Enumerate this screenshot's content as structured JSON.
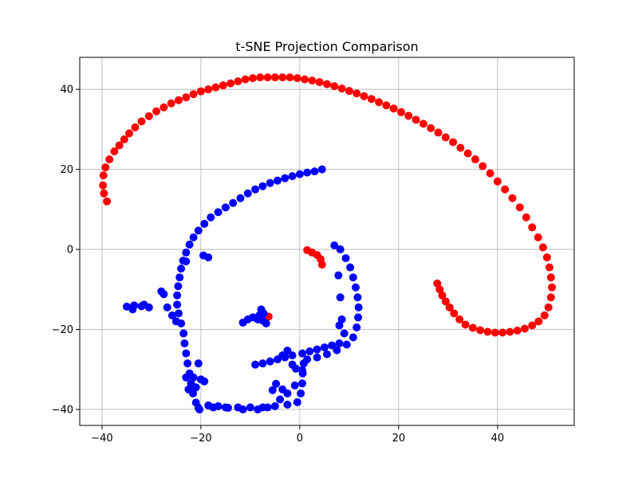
{
  "chart_data": {
    "type": "scatter",
    "title": "t-SNE Projection Comparison",
    "xlabel": "",
    "ylabel": "",
    "xlim": [
      -44.5,
      55.5
    ],
    "ylim": [
      -44,
      48
    ],
    "xticks": [
      -40,
      -20,
      0,
      20,
      40
    ],
    "yticks": [
      -40,
      -20,
      0,
      20,
      40
    ],
    "grid": true,
    "legend": "none",
    "series": [
      {
        "color": "#ff0000",
        "points": [
          [
            -39,
            12
          ],
          [
            -39.6,
            14
          ],
          [
            -39.8,
            16
          ],
          [
            -39.7,
            18.5
          ],
          [
            -39.3,
            20.5
          ],
          [
            -38.5,
            22.5
          ],
          [
            -37.5,
            24.5
          ],
          [
            -36.5,
            26
          ],
          [
            -35.5,
            27.5
          ],
          [
            -34.5,
            29
          ],
          [
            -33.3,
            30.5
          ],
          [
            -32,
            32
          ],
          [
            -30.5,
            33.3
          ],
          [
            -29,
            34.5
          ],
          [
            -27.5,
            35.5
          ],
          [
            -26,
            36.5
          ],
          [
            -24.5,
            37.3
          ],
          [
            -23,
            38
          ],
          [
            -21.5,
            38.8
          ],
          [
            -20,
            39.5
          ],
          [
            -18.5,
            40
          ],
          [
            -17,
            40.5
          ],
          [
            -15.5,
            41
          ],
          [
            -14,
            41.5
          ],
          [
            -12.5,
            42
          ],
          [
            -11,
            42.5
          ],
          [
            -9.5,
            42.8
          ],
          [
            -8,
            43
          ],
          [
            -6.5,
            43
          ],
          [
            -5,
            43
          ],
          [
            -3.5,
            43
          ],
          [
            -2,
            43
          ],
          [
            -0.5,
            42.8
          ],
          [
            1,
            42.5
          ],
          [
            2.5,
            42.2
          ],
          [
            4,
            41.8
          ],
          [
            5.5,
            41.3
          ],
          [
            7,
            40.8
          ],
          [
            8.5,
            40.2
          ],
          [
            10,
            39.6
          ],
          [
            11.5,
            39
          ],
          [
            13,
            38.3
          ],
          [
            14.5,
            37.6
          ],
          [
            16,
            36.8
          ],
          [
            17.5,
            36
          ],
          [
            19,
            35.2
          ],
          [
            20.5,
            34.3
          ],
          [
            22,
            33.4
          ],
          [
            23.5,
            32.4
          ],
          [
            25,
            31.4
          ],
          [
            26.5,
            30.3
          ],
          [
            28,
            29.2
          ],
          [
            29.5,
            28
          ],
          [
            31,
            26.8
          ],
          [
            32.5,
            25.4
          ],
          [
            34,
            24
          ],
          [
            35.5,
            22.5
          ],
          [
            37,
            20.8
          ],
          [
            38.5,
            19
          ],
          [
            40,
            17
          ],
          [
            41.5,
            15
          ],
          [
            43,
            12.8
          ],
          [
            44.5,
            10.5
          ],
          [
            45.8,
            8
          ],
          [
            47,
            5.5
          ],
          [
            48.2,
            3
          ],
          [
            49.2,
            0.5
          ],
          [
            50,
            -2
          ],
          [
            50.5,
            -4.5
          ],
          [
            50.8,
            -7
          ],
          [
            51,
            -9.5
          ],
          [
            50.8,
            -12
          ],
          [
            50.3,
            -14.5
          ],
          [
            49.5,
            -16.5
          ],
          [
            48.3,
            -18
          ],
          [
            47,
            -19
          ],
          [
            45.5,
            -19.8
          ],
          [
            44,
            -20.3
          ],
          [
            42.5,
            -20.6
          ],
          [
            41,
            -20.8
          ],
          [
            39.5,
            -20.8
          ],
          [
            38,
            -20.6
          ],
          [
            36.5,
            -20.2
          ],
          [
            35,
            -19.6
          ],
          [
            33.5,
            -18.8
          ],
          [
            32.3,
            -17.5
          ],
          [
            31.2,
            -16
          ],
          [
            30.3,
            -14.5
          ],
          [
            29.5,
            -13
          ],
          [
            28.8,
            -11.5
          ],
          [
            28.3,
            -10
          ],
          [
            27.8,
            -8.5
          ],
          [
            1.5,
            -0.2
          ],
          [
            2.5,
            -0.8
          ],
          [
            3.5,
            -1.4
          ],
          [
            4.2,
            -2.4
          ],
          [
            4.5,
            -3.8
          ],
          [
            -6.3,
            -16.8
          ]
        ]
      },
      {
        "color": "#0000ff",
        "points": [
          [
            4.5,
            20
          ],
          [
            3,
            19.5
          ],
          [
            1.5,
            19.2
          ],
          [
            0,
            18.8
          ],
          [
            -1.5,
            18.3
          ],
          [
            -3,
            17.8
          ],
          [
            -4.5,
            17.2
          ],
          [
            -6,
            16.6
          ],
          [
            -7.5,
            15.8
          ],
          [
            -9,
            15
          ],
          [
            -10.5,
            14
          ],
          [
            -12,
            12.8
          ],
          [
            -13.5,
            11.6
          ],
          [
            -15,
            10.5
          ],
          [
            -16.5,
            9.3
          ],
          [
            -18,
            8
          ],
          [
            -19.3,
            6.4
          ],
          [
            -20.5,
            4.7
          ],
          [
            -21.5,
            3
          ],
          [
            -22.3,
            1.2
          ],
          [
            -23,
            -0.8
          ],
          [
            -23.6,
            -2.8
          ],
          [
            -24,
            -4.8
          ],
          [
            -24.3,
            -7
          ],
          [
            -24.6,
            -9.2
          ],
          [
            -24.8,
            -11.5
          ],
          [
            -24.8,
            -13.8
          ],
          [
            -24.5,
            -16
          ],
          [
            -24,
            -18.5
          ],
          [
            -23.5,
            -21
          ],
          [
            -23.3,
            -23.5
          ],
          [
            -23,
            -26
          ],
          [
            -22.7,
            -28.5
          ],
          [
            -22.3,
            -31
          ],
          [
            -22,
            -33.5
          ],
          [
            -21.6,
            -36
          ],
          [
            -21,
            -38.3
          ],
          [
            -20.5,
            -39.6
          ],
          [
            -17.5,
            -39.5
          ],
          [
            -15,
            -39.5
          ],
          [
            -12.5,
            -39.5
          ],
          [
            -10,
            -39.5
          ],
          [
            -7.5,
            -39.5
          ],
          [
            -5,
            -39.2
          ],
          [
            -2.5,
            -38.8
          ],
          [
            -0.5,
            -38.2
          ],
          [
            0.2,
            -36
          ],
          [
            0.5,
            -33.5
          ],
          [
            0.6,
            -31
          ],
          [
            0.8,
            -28.5
          ],
          [
            1.5,
            -27.5
          ],
          [
            3.5,
            -27
          ],
          [
            5.5,
            -26.2
          ],
          [
            7.5,
            -25.2
          ],
          [
            9.5,
            -23.8
          ],
          [
            10.8,
            -22
          ],
          [
            11.5,
            -19.5
          ],
          [
            11.8,
            -17
          ],
          [
            11.9,
            -14.5
          ],
          [
            11.7,
            -12
          ],
          [
            11.3,
            -9.5
          ],
          [
            10.8,
            -7
          ],
          [
            10.2,
            -4.5
          ],
          [
            9.3,
            -2.2
          ],
          [
            8.2,
            0
          ],
          [
            7,
            1
          ],
          [
            7.8,
            -6.5
          ],
          [
            8.2,
            -12
          ],
          [
            8.5,
            -17.5
          ],
          [
            8,
            -19
          ],
          [
            9,
            -21
          ],
          [
            -30.5,
            -14.5
          ],
          [
            -32,
            -14.2
          ],
          [
            -33.5,
            -14
          ],
          [
            -35,
            -14.3
          ],
          [
            -33.8,
            -15
          ],
          [
            -31.5,
            -13.8
          ],
          [
            -28,
            -10.5
          ],
          [
            -27.5,
            -11.2
          ],
          [
            -26.8,
            -14.5
          ],
          [
            -25.8,
            -16.5
          ],
          [
            -25,
            -18
          ],
          [
            -23,
            -3
          ],
          [
            -19.5,
            -1.5
          ],
          [
            -18.5,
            -2
          ],
          [
            -9,
            -28.8
          ],
          [
            -7.5,
            -28.5
          ],
          [
            -6,
            -28
          ],
          [
            -4.5,
            -27.5
          ],
          [
            -3,
            -27
          ],
          [
            -1.5,
            -26.5
          ],
          [
            0.5,
            -26
          ],
          [
            2,
            -25.5
          ],
          [
            3.5,
            -25
          ],
          [
            5,
            -24.5
          ],
          [
            6.5,
            -24
          ],
          [
            8,
            -23.5
          ],
          [
            -7.8,
            -15
          ],
          [
            -7.3,
            -16
          ],
          [
            -8.2,
            -16.5
          ],
          [
            -8.5,
            -17.5
          ],
          [
            -7.5,
            -17.8
          ],
          [
            -9.5,
            -17
          ],
          [
            -10.5,
            -17.5
          ],
          [
            -11.5,
            -18.3
          ],
          [
            -6.8,
            -18.5
          ],
          [
            -4,
            -37.5
          ],
          [
            -2.5,
            -36
          ],
          [
            -1,
            -34
          ],
          [
            -3.5,
            -35
          ],
          [
            -5.5,
            -35.2
          ],
          [
            -4.8,
            -33.6
          ],
          [
            -3.5,
            -26.5
          ],
          [
            -2.5,
            -25.3
          ],
          [
            -1.5,
            -28.8
          ],
          [
            -0.8,
            -29.8
          ],
          [
            0.5,
            -30.2
          ],
          [
            -20.5,
            -28.5
          ],
          [
            -21.5,
            -32
          ],
          [
            -20,
            -32.5
          ],
          [
            -19.3,
            -33
          ],
          [
            -23,
            -32
          ],
          [
            -22.5,
            -35
          ],
          [
            -21,
            -34.5
          ],
          [
            -20.3,
            -40
          ],
          [
            -18.5,
            -39
          ],
          [
            -16.5,
            -39.2
          ],
          [
            -14.5,
            -39.6
          ],
          [
            -11.5,
            -40
          ],
          [
            -8.5,
            -40
          ],
          [
            -6.5,
            -39.5
          ]
        ]
      }
    ]
  }
}
